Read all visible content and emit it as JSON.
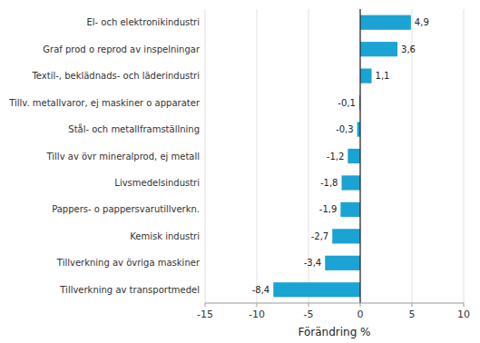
{
  "chart_data": {
    "type": "bar",
    "orientation": "horizontal",
    "categories": [
      "Tillverkning av transportmedel",
      "Tillverkning av övriga maskiner",
      "Kemisk industri",
      "Pappers- o pappersvarutillverkn.",
      "Livsmedelsindustri",
      "Tillv av övr mineralprod, ej metall",
      "Stål- och metallframställning",
      "Tillv. metallvaror, ej maskiner o apparater",
      "Textil-, beklädnads- och läderindustri",
      "Graf prod o reprod av inspelningar",
      "El- och elektronikindustri"
    ],
    "values": [
      -8.4,
      -3.4,
      -2.7,
      -1.9,
      -1.8,
      -1.2,
      -0.3,
      -0.1,
      1.1,
      3.6,
      4.9
    ],
    "value_labels": [
      "-8,4",
      "-3,4",
      "-2,7",
      "-1,9",
      "-1,8",
      "-1,2",
      "-0,3",
      "-0,1",
      "1,1",
      "3,6",
      "4,9"
    ],
    "color": "#1ba3d4",
    "xlabel": "Förändring %",
    "xlim": [
      -15,
      10
    ],
    "xticks": [
      -15,
      -10,
      -5,
      0,
      5,
      10
    ],
    "grid": true,
    "data_labels": true
  }
}
